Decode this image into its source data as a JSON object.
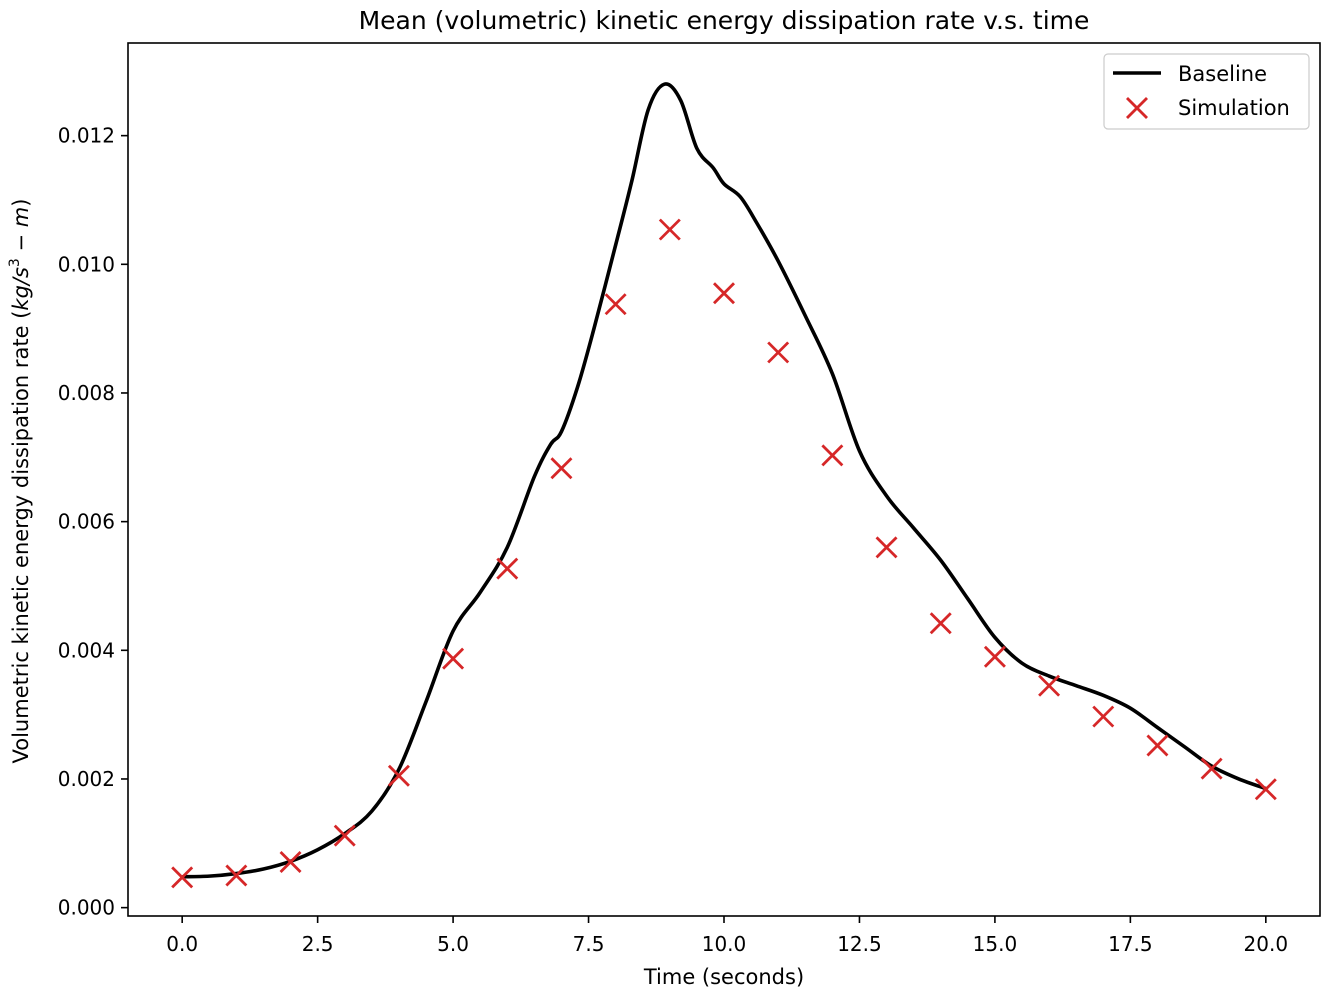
{
  "chart_data": {
    "type": "line",
    "title": "Mean (volumetric) kinetic energy dissipation rate v.s. time",
    "xlabel": "Time (seconds)",
    "ylabel_main": "Volumetric kinetic energy dissipation rate (",
    "ylabel_unit_kg": "kg",
    "ylabel_unit_slash": "/",
    "ylabel_unit_s": "s",
    "ylabel_unit_exp": "3",
    "ylabel_unit_minus": " − ",
    "ylabel_unit_m": "m",
    "ylabel_close": ")",
    "xlim": [
      -1.0,
      21.0
    ],
    "ylim": [
      -0.00013,
      0.01344
    ],
    "x_ticks": [
      0.0,
      2.5,
      5.0,
      7.5,
      10.0,
      12.5,
      15.0,
      17.5,
      20.0
    ],
    "x_tick_labels": [
      "0.0",
      "2.5",
      "5.0",
      "7.5",
      "10.0",
      "12.5",
      "15.0",
      "17.5",
      "20.0"
    ],
    "y_ticks": [
      0.0,
      0.002,
      0.004,
      0.006,
      0.008,
      0.01,
      0.012
    ],
    "y_tick_labels": [
      "0.000",
      "0.002",
      "0.004",
      "0.006",
      "0.008",
      "0.010",
      "0.012"
    ],
    "grid": false,
    "legend_position": "top-right",
    "series": [
      {
        "name": "Baseline",
        "kind": "line",
        "color": "#000000",
        "x": [
          0,
          0.5,
          1,
          1.5,
          2,
          2.5,
          3,
          3.5,
          4,
          4.5,
          5,
          5.5,
          6,
          6.5,
          6.8,
          7,
          7.3,
          7.6,
          8,
          8.3,
          8.6,
          8.9,
          9.2,
          9.5,
          9.8,
          10,
          10.3,
          10.6,
          11,
          11.5,
          12,
          12.5,
          13,
          13.5,
          14,
          14.5,
          15,
          15.5,
          16,
          16.5,
          17,
          17.5,
          18,
          18.5,
          19,
          19.5,
          20
        ],
        "y": [
          0.00048,
          0.00049,
          0.00053,
          0.0006,
          0.00072,
          0.0009,
          0.00115,
          0.0015,
          0.00215,
          0.0032,
          0.0043,
          0.0049,
          0.0056,
          0.0067,
          0.0072,
          0.0074,
          0.0081,
          0.009,
          0.0103,
          0.0113,
          0.0124,
          0.0128,
          0.01255,
          0.0118,
          0.0115,
          0.01125,
          0.01105,
          0.01065,
          0.01005,
          0.0092,
          0.0083,
          0.0071,
          0.0064,
          0.0059,
          0.0054,
          0.0048,
          0.0042,
          0.0038,
          0.0036,
          0.00345,
          0.0033,
          0.0031,
          0.0028,
          0.0025,
          0.0022,
          0.002,
          0.00185
        ]
      },
      {
        "name": "Simulation",
        "kind": "scatter",
        "marker": "x",
        "color": "#d62728",
        "x": [
          0,
          1,
          2,
          3,
          4,
          5,
          6,
          7,
          8,
          9,
          10,
          11,
          12,
          13,
          14,
          15,
          16,
          17,
          18,
          19,
          20
        ],
        "y": [
          0.00047,
          0.0005,
          0.00071,
          0.00112,
          0.00205,
          0.00387,
          0.00527,
          0.00683,
          0.00938,
          0.01054,
          0.00955,
          0.00863,
          0.00703,
          0.0056,
          0.00442,
          0.0039,
          0.00345,
          0.00297,
          0.00252,
          0.00216,
          0.00184
        ]
      }
    ]
  }
}
